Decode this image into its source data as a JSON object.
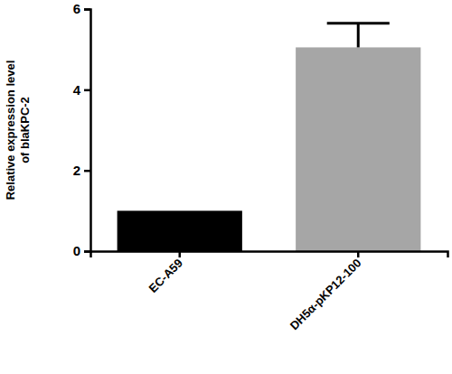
{
  "chart_data": {
    "type": "bar",
    "y_label": [
      "Relative expression level",
      "of blaKPC-2"
    ],
    "categories": [
      "EC-A59",
      "DH5α-pKP12-100"
    ],
    "values": [
      1.0,
      5.05
    ],
    "errors": [
      0,
      0.6
    ],
    "colors": [
      "#000000",
      "#a6a6a6"
    ],
    "ylim": [
      0,
      6
    ],
    "yticks": [
      0,
      2,
      4,
      6
    ],
    "grid": false
  }
}
